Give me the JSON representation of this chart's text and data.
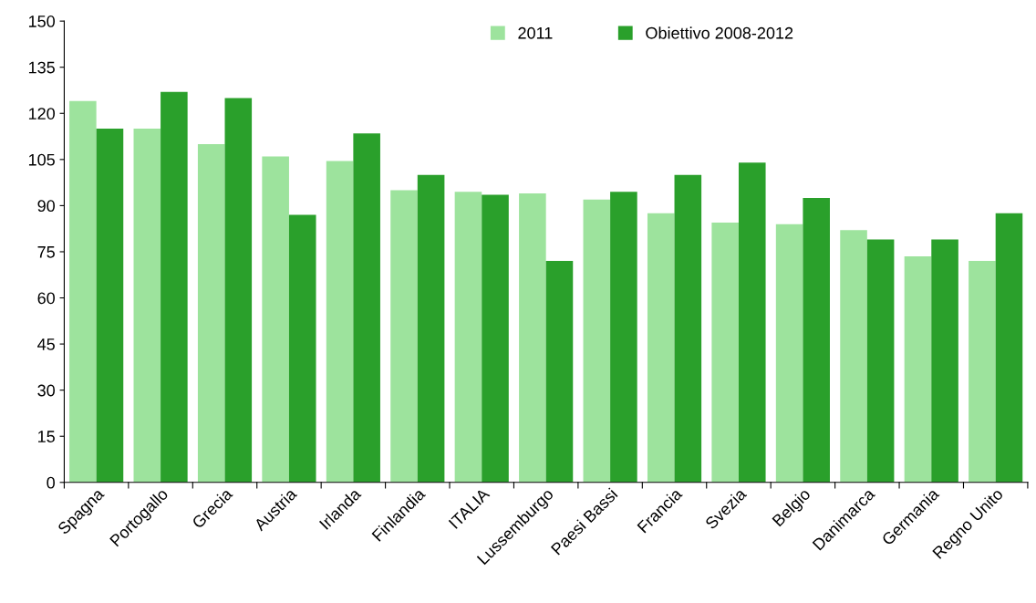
{
  "chart_data": {
    "type": "bar",
    "categories": [
      "Spagna",
      "Portogallo",
      "Grecia",
      "Austria",
      "Irlanda",
      "Finlandia",
      "ITALIA",
      "Lussemburgo",
      "Paesi Bassi",
      "Francia",
      "Svezia",
      "Belgio",
      "Danimarca",
      "Germania",
      "Regno Unito"
    ],
    "series": [
      {
        "name": "2011",
        "color": "#9de39d",
        "values": [
          124,
          115,
          110,
          106,
          104.5,
          95,
          94.5,
          94,
          92,
          87.5,
          84.5,
          84,
          82,
          73.5,
          72
        ]
      },
      {
        "name": "Obiettivo 2008-2012",
        "color": "#2aa02b",
        "values": [
          115,
          127,
          125,
          87,
          113.5,
          100,
          93.5,
          72,
          94.5,
          100,
          104,
          92.5,
          79,
          79,
          87.5
        ]
      }
    ],
    "ylim": [
      0,
      150
    ],
    "yticks": [
      0,
      15,
      30,
      45,
      60,
      75,
      90,
      105,
      120,
      135,
      150
    ],
    "grid": false,
    "legend": "top"
  }
}
